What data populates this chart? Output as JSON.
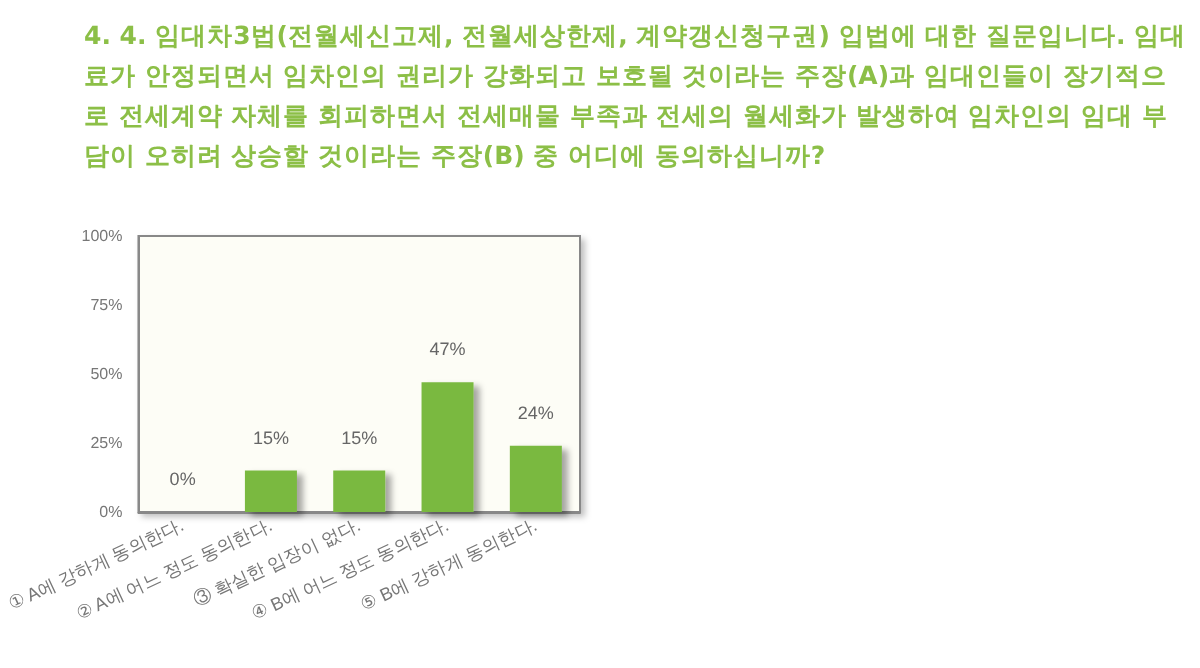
{
  "chart_data": {
    "type": "bar",
    "title": "4. 4. 임대차3법(전월세신고제, 전월세상한제, 계약갱신청구권) 입법에 대한 질문입니다. 임대료가 안정되면서 임차인의 권리가 강화되고 보호될 것이라는 주장(A)과 임대인들이 장기적으로 전세계약 자체를 회피하면서 전세매물 부족과 전세의 월세화가 발생하여 임차인의 임대 부담이 오히려 상승할 것이라는 주장(B) 중 어디에 동의하십니까?",
    "categories": [
      "① A에 강하게 동의한다.",
      "② A에 어느 정도 동의한다.",
      "③ 확실한 입장이 없다.",
      "④ B에 어느 정도 동의한다.",
      "⑤ B에 강하게 동의한다."
    ],
    "values": [
      0,
      15,
      15,
      47,
      24
    ],
    "value_labels": [
      "0%",
      "15%",
      "15%",
      "47%",
      "24%"
    ],
    "color": "#7ab940",
    "ylim": [
      0,
      100
    ],
    "yticks": [
      {
        "value": 0,
        "label": "0%"
      },
      {
        "value": 25,
        "label": "25%"
      },
      {
        "value": 50,
        "label": "50%"
      },
      {
        "value": 75,
        "label": "75%"
      },
      {
        "value": 100,
        "label": "100%"
      }
    ],
    "grid": false
  }
}
